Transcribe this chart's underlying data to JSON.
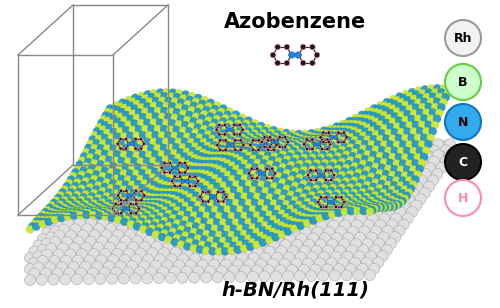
{
  "title_text": "Azobenzene",
  "subtitle_text": "h-BN/Rh(111)",
  "legend_items": [
    {
      "label": "Rh",
      "facecolor": "#f2f2f2",
      "edgecolor": "#999999",
      "text_color": "black"
    },
    {
      "label": "B",
      "facecolor": "#ccffcc",
      "edgecolor": "#66cc44",
      "text_color": "black"
    },
    {
      "label": "N",
      "facecolor": "#33aaee",
      "edgecolor": "#1177bb",
      "text_color": "black"
    },
    {
      "label": "C",
      "facecolor": "#222222",
      "edgecolor": "#000000",
      "text_color": "white"
    },
    {
      "label": "H",
      "facecolor": "#ffffff",
      "edgecolor": "#ff88bb",
      "text_color": "#ff88bb"
    }
  ],
  "bg_color": "#ffffff",
  "title_fontsize": 15,
  "subtitle_fontsize": 14,
  "legend_fontsize": 9,
  "fig_width": 5.0,
  "fig_height": 3.08,
  "dpi": 100,
  "rh_color": "#e0e0e0",
  "rh_edge": "#aaaaaa",
  "hbn_green": "#cce833",
  "hbn_blue": "#2299cc",
  "box_color": "#888888"
}
